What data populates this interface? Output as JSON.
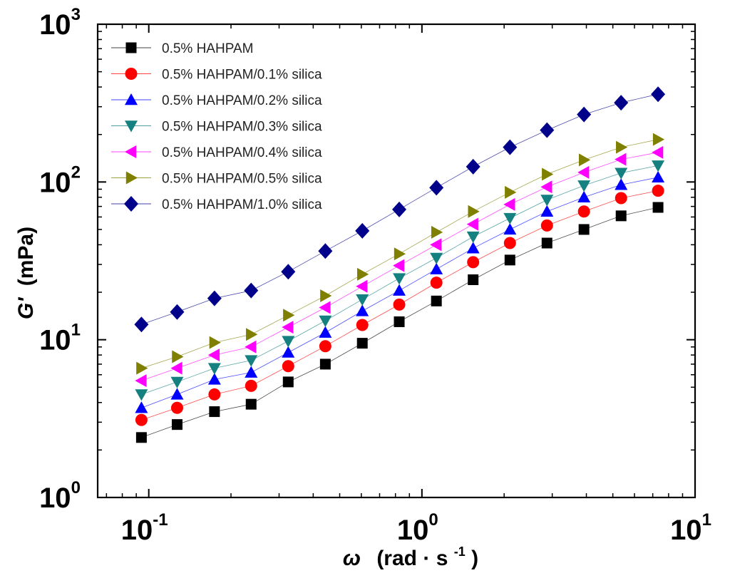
{
  "chart_data": {
    "type": "scatter",
    "title": "",
    "xlabel": {
      "symbol": "ω",
      "unit_open": "(rad",
      "unit_dot": "·",
      "unit_s": "s",
      "unit_exp": "-1",
      "unit_close": ")"
    },
    "ylabel": {
      "symbol": "G'",
      "unit": "(mPa)"
    },
    "xscale": "log",
    "yscale": "log",
    "xlim": [
      0.065,
      10
    ],
    "ylim": [
      1,
      1000
    ],
    "xticks": [
      {
        "base": "10",
        "exp": "-1"
      },
      {
        "base": "10",
        "exp": "0"
      },
      {
        "base": "10",
        "exp": "1"
      }
    ],
    "yticks": [
      {
        "base": "10",
        "exp": "0"
      },
      {
        "base": "10",
        "exp": "1"
      },
      {
        "base": "10",
        "exp": "2"
      },
      {
        "base": "10",
        "exp": "3"
      }
    ],
    "legend_position": "top-left",
    "x": [
      0.094,
      0.127,
      0.174,
      0.237,
      0.324,
      0.443,
      0.605,
      0.826,
      1.13,
      1.54,
      2.1,
      2.87,
      3.92,
      5.36,
      7.32
    ],
    "series": [
      {
        "name": "0.5% HAHPAM",
        "marker": "square",
        "color": "#000000",
        "values": [
          2.4,
          2.9,
          3.5,
          3.9,
          5.4,
          7.0,
          9.5,
          13.0,
          17.6,
          24.0,
          32.0,
          41.0,
          50.0,
          61.0,
          69.0
        ]
      },
      {
        "name": "0.5% HAHPAM/0.1% silica",
        "marker": "circle",
        "color": "#ff0000",
        "values": [
          3.1,
          3.7,
          4.5,
          5.1,
          6.8,
          9.1,
          12.4,
          16.7,
          23.0,
          31.0,
          41.0,
          53.0,
          65.0,
          79.0,
          88.0
        ]
      },
      {
        "name": "0.5% HAHPAM/0.2% silica",
        "marker": "triangle-up",
        "color": "#0000ff",
        "values": [
          3.7,
          4.5,
          5.6,
          6.2,
          8.3,
          11.1,
          15.2,
          20.5,
          28.0,
          38.0,
          50.0,
          65.0,
          80.0,
          96.0,
          107.0
        ]
      },
      {
        "name": "0.5% HAHPAM/0.3% silica",
        "marker": "triangle-down",
        "color": "#158080",
        "values": [
          4.5,
          5.4,
          6.6,
          7.4,
          9.8,
          13.2,
          18.0,
          24.5,
          33.0,
          45.0,
          59.0,
          77.0,
          95.0,
          114.0,
          127.0
        ]
      },
      {
        "name": "0.5% HAHPAM/0.4% silica",
        "marker": "triangle-left",
        "color": "#ff00ff",
        "values": [
          5.5,
          6.6,
          8.0,
          9.0,
          12.0,
          16.0,
          21.8,
          29.5,
          40.0,
          54.0,
          72.0,
          93.0,
          115.0,
          139.0,
          154.0
        ]
      },
      {
        "name": "0.5% HAHPAM/0.5% silica",
        "marker": "triangle-right",
        "color": "#808000",
        "values": [
          6.6,
          7.8,
          9.6,
          10.8,
          14.3,
          19.0,
          26.0,
          35.0,
          48.0,
          65.0,
          86.0,
          112.0,
          138.0,
          166.0,
          186.0
        ]
      },
      {
        "name": "0.5% HAHPAM/1.0% silica",
        "marker": "diamond",
        "color": "#00008b",
        "values": [
          12.5,
          15.0,
          18.3,
          20.5,
          27.0,
          36.5,
          49.0,
          67.0,
          92.0,
          125.0,
          166.0,
          213.0,
          268.0,
          318.0,
          360.0
        ]
      }
    ]
  }
}
